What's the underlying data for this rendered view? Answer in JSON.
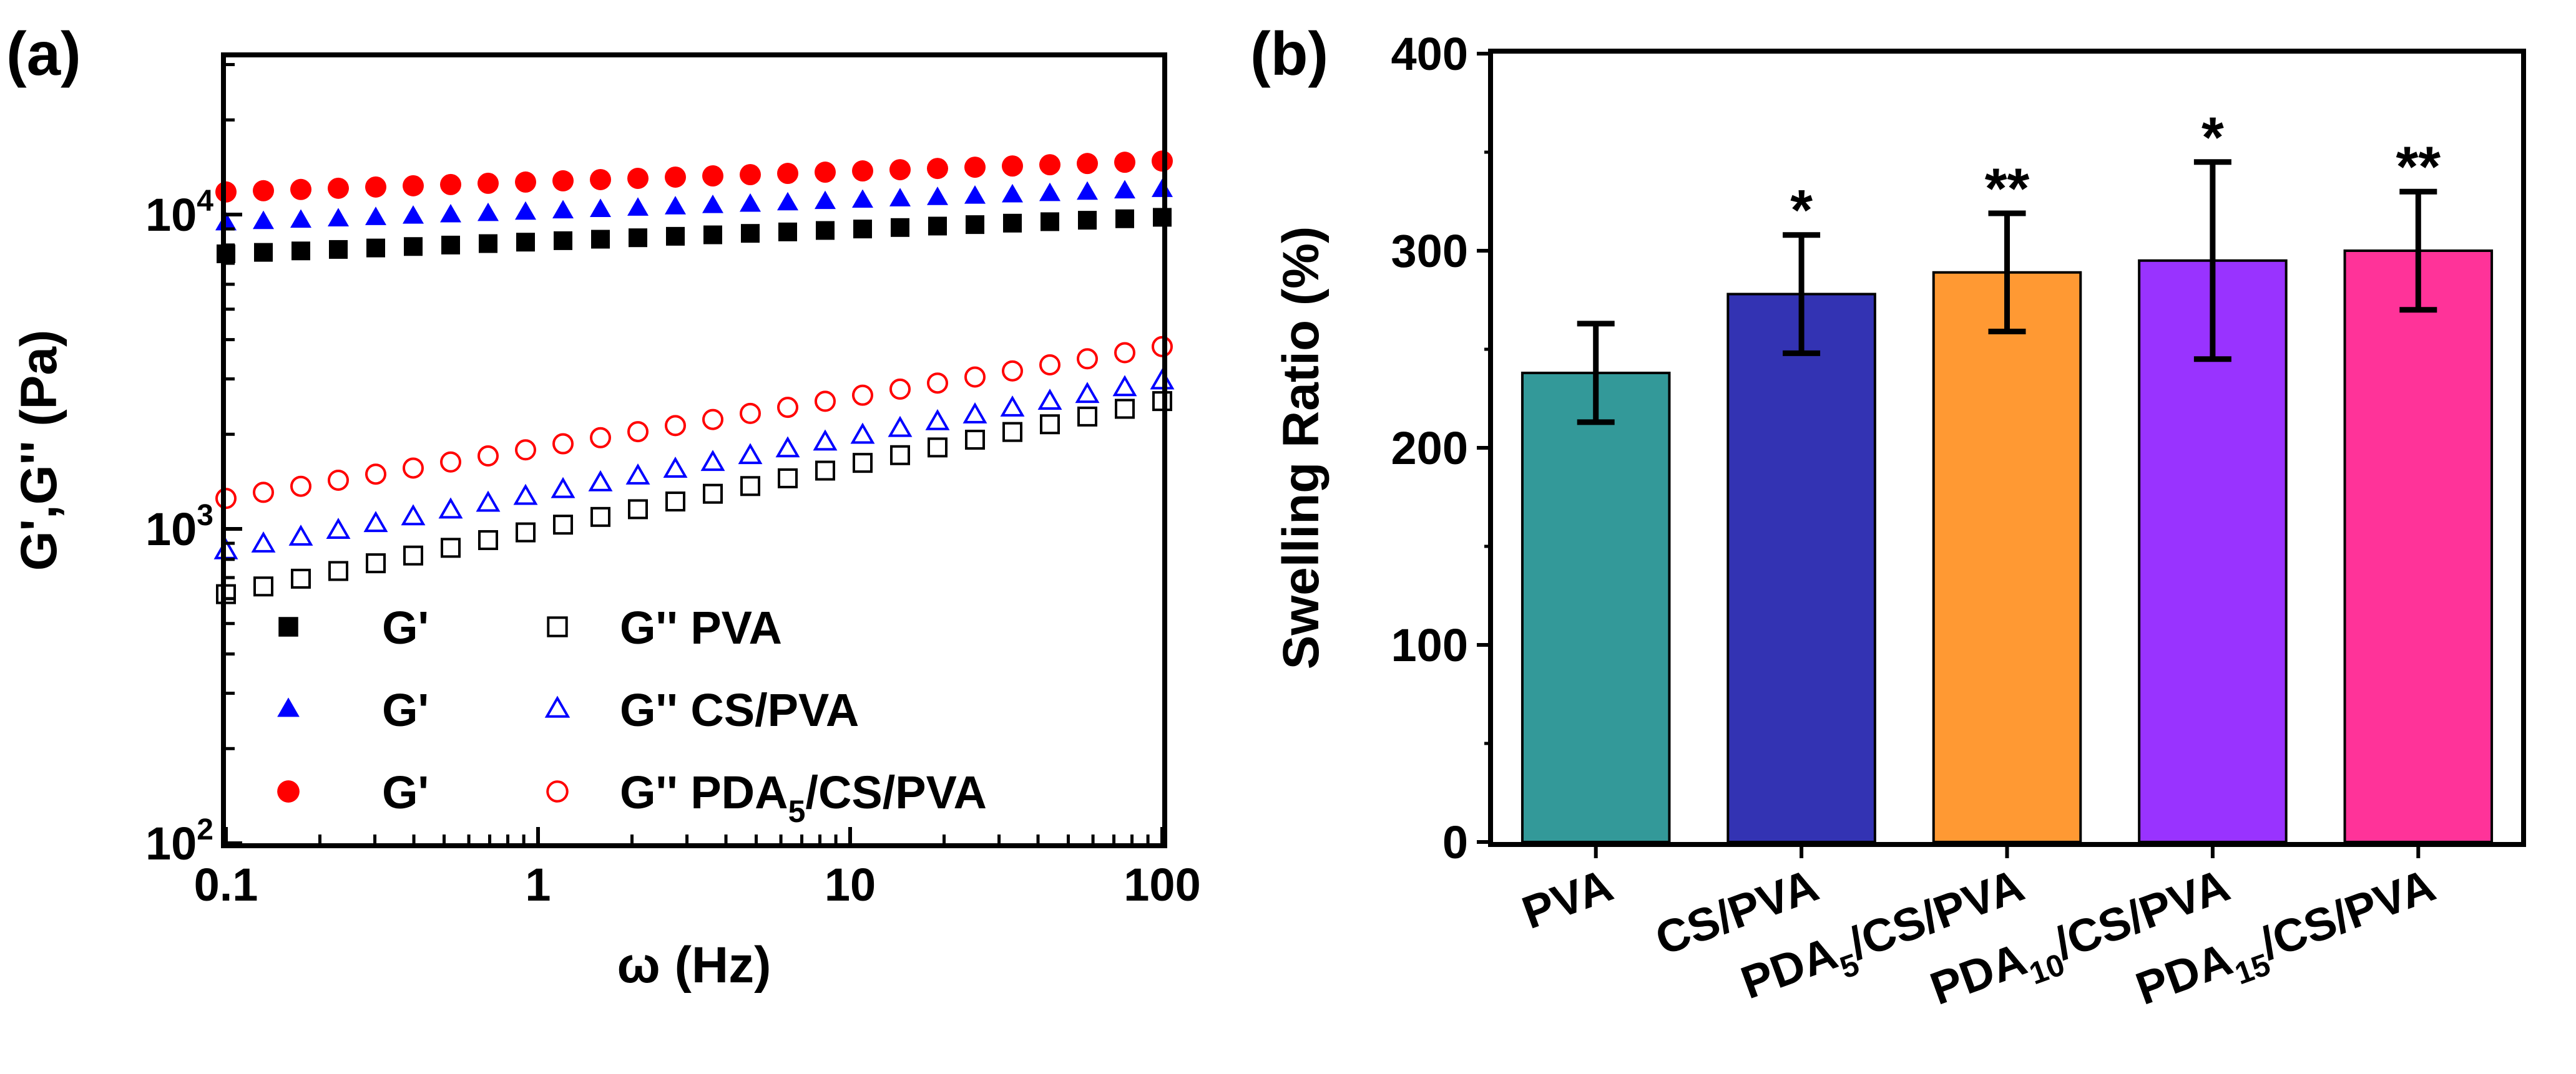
{
  "chart_data": [
    {
      "panel": "(a)",
      "type": "scatter",
      "xscale": "log",
      "yscale": "log",
      "xlabel": "ω (Hz)",
      "ylabel": "G',G'' (Pa)",
      "xlim": [
        0.1,
        100
      ],
      "ylim": [
        100,
        31623
      ],
      "x_ticks": [
        {
          "value": 0.1,
          "label": "0.1"
        },
        {
          "value": 1,
          "label": "1"
        },
        {
          "value": 10,
          "label": "10"
        },
        {
          "value": 100,
          "label": "100"
        }
      ],
      "y_ticks": [
        {
          "value": 100,
          "base": "10",
          "exp": "2"
        },
        {
          "value": 1000,
          "base": "10",
          "exp": "3"
        },
        {
          "value": 10000,
          "base": "10",
          "exp": "4"
        }
      ],
      "series": [
        {
          "name": "PVA",
          "modulus": "G'",
          "marker": "square",
          "filled": true,
          "color": "#000000",
          "start": 7500,
          "end": 9800
        },
        {
          "name": "PVA",
          "modulus": "G''",
          "marker": "square",
          "filled": false,
          "color": "#000000",
          "start": 620,
          "end": 2550
        },
        {
          "name": "CS/PVA",
          "modulus": "G'",
          "marker": "triangle",
          "filled": true,
          "color": "#0000ff",
          "start": 9400,
          "end": 12000
        },
        {
          "name": "CS/PVA",
          "modulus": "G''",
          "marker": "triangle",
          "filled": false,
          "color": "#0000ff",
          "start": 850,
          "end": 2950
        },
        {
          "name": "PDA5/CS/PVA",
          "modulus": "G'",
          "marker": "circle",
          "filled": true,
          "color": "#ff0000",
          "start": 11800,
          "end": 14800
        },
        {
          "name": "PDA5/CS/PVA",
          "modulus": "G''",
          "marker": "circle",
          "filled": false,
          "color": "#ff0000",
          "start": 1250,
          "end": 3800
        }
      ],
      "legend": {
        "placement": "lower-right",
        "rows": [
          {
            "filled_label": "G'",
            "open_label": "G''",
            "name": "PVA",
            "name_parts": {
              "pre": "PVA",
              "sub": "",
              "post": ""
            }
          },
          {
            "filled_label": "G'",
            "open_label": "G''",
            "name": "CS/PVA",
            "name_parts": {
              "pre": "CS/PVA",
              "sub": "",
              "post": ""
            }
          },
          {
            "filled_label": "G'",
            "open_label": "G''",
            "name": "PDA5/CS/PVA",
            "name_parts": {
              "pre": "PDA",
              "sub": "5",
              "post": "/CS/PVA"
            }
          }
        ]
      }
    },
    {
      "panel": "(b)",
      "type": "bar",
      "ylabel": "Swelling Ratio (%)",
      "ylim": [
        0,
        400
      ],
      "y_ticks": [
        0,
        100,
        200,
        300,
        400
      ],
      "categories": [
        {
          "pre": "PVA",
          "sub": "",
          "post": ""
        },
        {
          "pre": "CS/PVA",
          "sub": "",
          "post": ""
        },
        {
          "pre": "PDA",
          "sub": "5",
          "post": "/CS/PVA"
        },
        {
          "pre": "PDA",
          "sub": "10",
          "post": "/CS/PVA"
        },
        {
          "pre": "PDA",
          "sub": "15",
          "post": "/CS/PVA"
        }
      ],
      "values": [
        238,
        278,
        289,
        295,
        300
      ],
      "errors": [
        25,
        30,
        30,
        50,
        30
      ],
      "significance": [
        "",
        "*",
        "**",
        "*",
        "**"
      ],
      "colors": [
        "#339999",
        "#3333b3",
        "#ff9933",
        "#9933ff",
        "#ff3399"
      ]
    }
  ]
}
